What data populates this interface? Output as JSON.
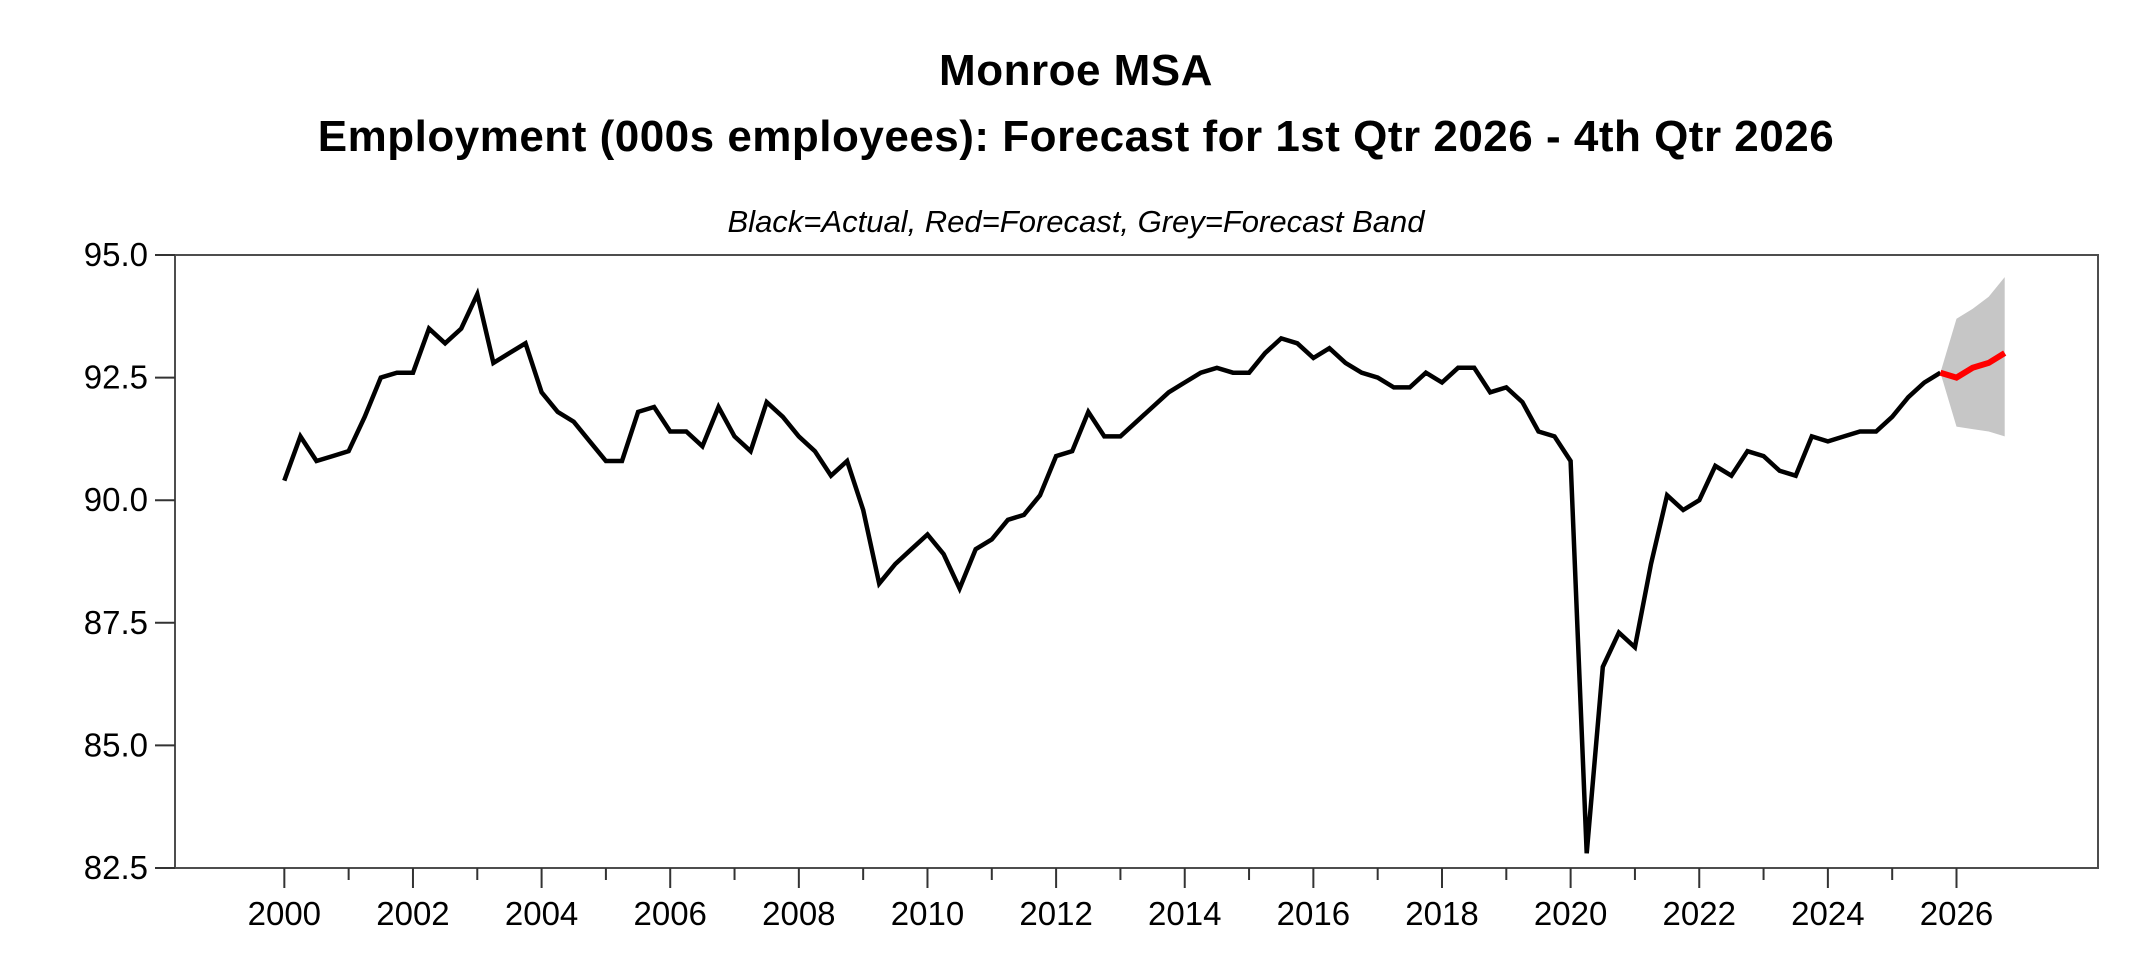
{
  "title_line1": "Monroe MSA",
  "title_line2": "Employment (000s employees): Forecast for 1st Qtr 2026 - 4th Qtr 2026",
  "subtitle": "Black=Actual, Red=Forecast, Grey=Forecast Band",
  "colors": {
    "actual": "#000000",
    "forecast": "#ff0000",
    "band": "#c6c6c6",
    "frame": "#4d4d4d",
    "tick": "#333333"
  },
  "chart_data": {
    "type": "line",
    "title": "Monroe MSA",
    "subtitle": "Employment (000s employees): Forecast for 1st Qtr 2026 - 4th Qtr 2026",
    "legend_note": "Black=Actual, Red=Forecast, Grey=Forecast Band",
    "xlabel": "",
    "ylabel": "",
    "frequency": "quarterly",
    "xlim": [
      1998.3,
      2028.2
    ],
    "ylim": [
      82.5,
      95.0
    ],
    "grid": false,
    "y_axis": {
      "tick_values": [
        82.5,
        85.0,
        87.5,
        90.0,
        92.5,
        95.0
      ],
      "tick_labels": [
        "82.5",
        "85.0",
        "87.5",
        "90.0",
        "92.5",
        "95.0"
      ]
    },
    "x_axis": {
      "major_tick_years": [
        2000,
        2002,
        2004,
        2006,
        2008,
        2010,
        2012,
        2014,
        2016,
        2018,
        2020,
        2022,
        2024,
        2026
      ],
      "major_tick_labels": [
        "2000",
        "2002",
        "2004",
        "2006",
        "2008",
        "2010",
        "2012",
        "2014",
        "2016",
        "2018",
        "2020",
        "2022",
        "2024",
        "2026"
      ],
      "minor_tick_years": [
        2001,
        2003,
        2005,
        2007,
        2009,
        2011,
        2013,
        2015,
        2017,
        2019,
        2021,
        2023,
        2025
      ]
    },
    "series": [
      {
        "name": "Actual",
        "role": "actual",
        "color_key": "actual",
        "start_year": 2000,
        "start_quarter": 1,
        "values": [
          90.4,
          91.3,
          90.8,
          90.9,
          91.0,
          91.7,
          92.5,
          92.6,
          92.6,
          93.5,
          93.2,
          93.5,
          94.2,
          92.8,
          93.0,
          93.2,
          92.2,
          91.8,
          91.6,
          91.2,
          90.8,
          90.8,
          91.8,
          91.9,
          91.4,
          91.4,
          91.1,
          91.9,
          91.3,
          91.0,
          92.0,
          91.7,
          91.3,
          91.0,
          90.5,
          90.8,
          89.8,
          88.3,
          88.7,
          89.0,
          89.3,
          88.9,
          88.2,
          89.0,
          89.2,
          89.6,
          89.7,
          90.1,
          90.9,
          91.0,
          91.8,
          91.3,
          91.3,
          91.6,
          91.9,
          92.2,
          92.4,
          92.6,
          92.7,
          92.6,
          92.6,
          93.0,
          93.3,
          93.2,
          92.9,
          93.1,
          92.8,
          92.6,
          92.5,
          92.3,
          92.3,
          92.6,
          92.4,
          92.7,
          92.7,
          92.2,
          92.3,
          92.0,
          91.4,
          91.3,
          90.8,
          82.8,
          86.6,
          87.3,
          87.0,
          88.7,
          90.1,
          89.8,
          90.0,
          90.7,
          90.5,
          91.0,
          90.9,
          90.6,
          90.5,
          91.3,
          91.2,
          91.3,
          91.4,
          91.4,
          91.7,
          92.1,
          92.4,
          92.6
        ]
      },
      {
        "name": "Forecast",
        "role": "forecast",
        "color_key": "forecast",
        "start_year": 2025,
        "start_quarter": 4,
        "values": [
          92.6,
          92.5,
          92.7,
          92.8,
          93.0
        ]
      },
      {
        "name": "Forecast Band Upper",
        "role": "band_upper",
        "color_key": "band",
        "start_year": 2025,
        "start_quarter": 4,
        "values": [
          92.6,
          93.7,
          93.9,
          94.15,
          94.55
        ]
      },
      {
        "name": "Forecast Band Lower",
        "role": "band_lower",
        "color_key": "band",
        "start_year": 2025,
        "start_quarter": 4,
        "values": [
          92.6,
          91.5,
          91.45,
          91.4,
          91.3
        ]
      }
    ]
  }
}
